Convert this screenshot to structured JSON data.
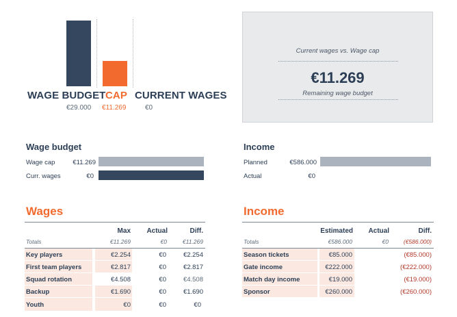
{
  "chart": {
    "wage_budget": {
      "label": "WAGE BUDGET",
      "value": "€29.000"
    },
    "cap": {
      "label": "CAP",
      "value": "€11.269"
    },
    "current_wages": {
      "label": "CURRENT WAGES",
      "value": "€0"
    },
    "cap_fraction_of_budget": 0.389,
    "current_fraction_of_budget": 0
  },
  "summary_card": {
    "caption": "Current wages vs. Wage cap",
    "amount": "€11.269",
    "subcaption": "Remaining wage budget"
  },
  "wage_budget_section": {
    "title": "Wage budget",
    "rows": [
      {
        "label": "Wage cap",
        "value": "€11.269",
        "style": "grey",
        "fill": 1.0
      },
      {
        "label": "Curr. wages",
        "value": "€0",
        "style": "navy",
        "fill": 1.0
      }
    ]
  },
  "income_section": {
    "title": "Income",
    "rows": [
      {
        "label": "Planned",
        "value": "€586.000",
        "style": "grey",
        "fill": 1.0
      },
      {
        "label": "Actual",
        "value": "€0",
        "style": "none",
        "fill": 0
      }
    ]
  },
  "wages_table": {
    "title": "Wages",
    "headers": [
      "Max",
      "Actual",
      "Diff."
    ],
    "totals": {
      "label": "Totals",
      "max": "€11.269",
      "actual": "€0",
      "diff": "€11.269"
    },
    "rows": [
      {
        "label": "Key players",
        "max": "€2.254",
        "actual": "€0",
        "diff": "€2.254"
      },
      {
        "label": "First team players",
        "max": "€2.817",
        "actual": "€0",
        "diff": "€2.817"
      },
      {
        "label": "Squad rotation",
        "max": "€4.508",
        "actual": "€0",
        "diff": "€4.508"
      },
      {
        "label": "Backup",
        "max": "€1.690",
        "actual": "€0",
        "diff": "€1.690"
      },
      {
        "label": "Youth",
        "max": "€0",
        "actual": "€0",
        "diff": "€0"
      }
    ]
  },
  "income_table": {
    "title": "Income",
    "headers": [
      "Estimated",
      "Actual",
      "Diff."
    ],
    "totals": {
      "label": "Totals",
      "estimated": "€586.000",
      "actual": "€0",
      "diff": "(€586.000)"
    },
    "rows": [
      {
        "label": "Season tickets",
        "estimated": "€85.000",
        "actual": "",
        "diff": "(€85.000)"
      },
      {
        "label": "Gate income",
        "estimated": "€222.000",
        "actual": "",
        "diff": "(€222.000)"
      },
      {
        "label": "Match day income",
        "estimated": "€19.000",
        "actual": "",
        "diff": "(€19.000)"
      },
      {
        "label": "Sponsor",
        "estimated": "€260.000",
        "actual": "",
        "diff": "(€260.000)"
      }
    ]
  }
}
